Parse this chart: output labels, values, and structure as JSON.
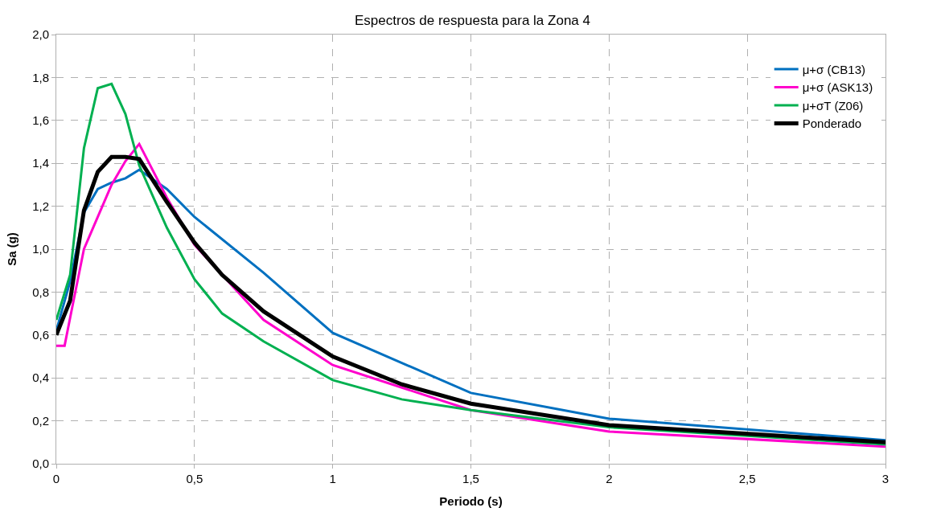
{
  "chart_data": {
    "type": "line",
    "title": "Espectros de respuesta para la Zona 4",
    "xlabel": "Periodo (s)",
    "ylabel": "Sa (g)",
    "xlim": [
      0,
      3
    ],
    "xticks": [
      {
        "value": 0,
        "label": "0"
      },
      {
        "value": 0.5,
        "label": "0,5"
      },
      {
        "value": 1,
        "label": "1"
      },
      {
        "value": 1.5,
        "label": "1,5"
      },
      {
        "value": 2,
        "label": "2"
      },
      {
        "value": 2.5,
        "label": "2,5"
      },
      {
        "value": 3,
        "label": "3"
      }
    ],
    "ylim": [
      0,
      2
    ],
    "yticks": [
      {
        "value": 0,
        "label": "0,0"
      },
      {
        "value": 0.2,
        "label": "0,2"
      },
      {
        "value": 0.4,
        "label": "0,4"
      },
      {
        "value": 0.6,
        "label": "0,6"
      },
      {
        "value": 0.8,
        "label": "0,8"
      },
      {
        "value": 1.0,
        "label": "1,0"
      },
      {
        "value": 1.2,
        "label": "1,2"
      },
      {
        "value": 1.4,
        "label": "1,4"
      },
      {
        "value": 1.6,
        "label": "1,6"
      },
      {
        "value": 1.8,
        "label": "1,8"
      },
      {
        "value": 2.0,
        "label": "2,0"
      }
    ],
    "grid": true,
    "legend": "top right",
    "marker": "none",
    "line_style": "solid",
    "series": [
      {
        "name": "μ+σ (CB13)",
        "color": "#0070c0",
        "x": [
          0,
          0.05,
          0.1,
          0.15,
          0.2,
          0.25,
          0.3,
          0.4,
          0.5,
          0.75,
          1,
          1.5,
          2,
          3
        ],
        "values": [
          0.62,
          0.85,
          1.17,
          1.28,
          1.31,
          1.33,
          1.37,
          1.28,
          1.15,
          0.89,
          0.61,
          0.33,
          0.21,
          0.11
        ]
      },
      {
        "name": "μ+σ (ASK13)",
        "color": "#ff00cc",
        "x": [
          0,
          0.03,
          0.05,
          0.1,
          0.15,
          0.2,
          0.25,
          0.3,
          0.4,
          0.5,
          0.75,
          1,
          1.5,
          2,
          3
        ],
        "values": [
          0.55,
          0.55,
          0.68,
          1.0,
          1.15,
          1.3,
          1.41,
          1.49,
          1.24,
          1.02,
          0.67,
          0.46,
          0.25,
          0.15,
          0.08
        ]
      },
      {
        "name": "μ+σT (Z06)",
        "color": "#00b050",
        "x": [
          0,
          0.05,
          0.1,
          0.15,
          0.2,
          0.25,
          0.3,
          0.4,
          0.5,
          0.6,
          0.75,
          1,
          1.25,
          1.5,
          2,
          3
        ],
        "values": [
          0.67,
          0.88,
          1.47,
          1.75,
          1.77,
          1.63,
          1.39,
          1.1,
          0.86,
          0.7,
          0.57,
          0.39,
          0.3,
          0.25,
          0.17,
          0.09
        ]
      },
      {
        "name": "Ponderado",
        "color": "#000000",
        "x": [
          0,
          0.05,
          0.1,
          0.15,
          0.2,
          0.25,
          0.3,
          0.4,
          0.5,
          0.6,
          0.75,
          1,
          1.25,
          1.5,
          2,
          3
        ],
        "values": [
          0.6,
          0.76,
          1.18,
          1.36,
          1.43,
          1.43,
          1.42,
          1.22,
          1.03,
          0.88,
          0.71,
          0.5,
          0.37,
          0.28,
          0.18,
          0.1
        ]
      }
    ]
  }
}
